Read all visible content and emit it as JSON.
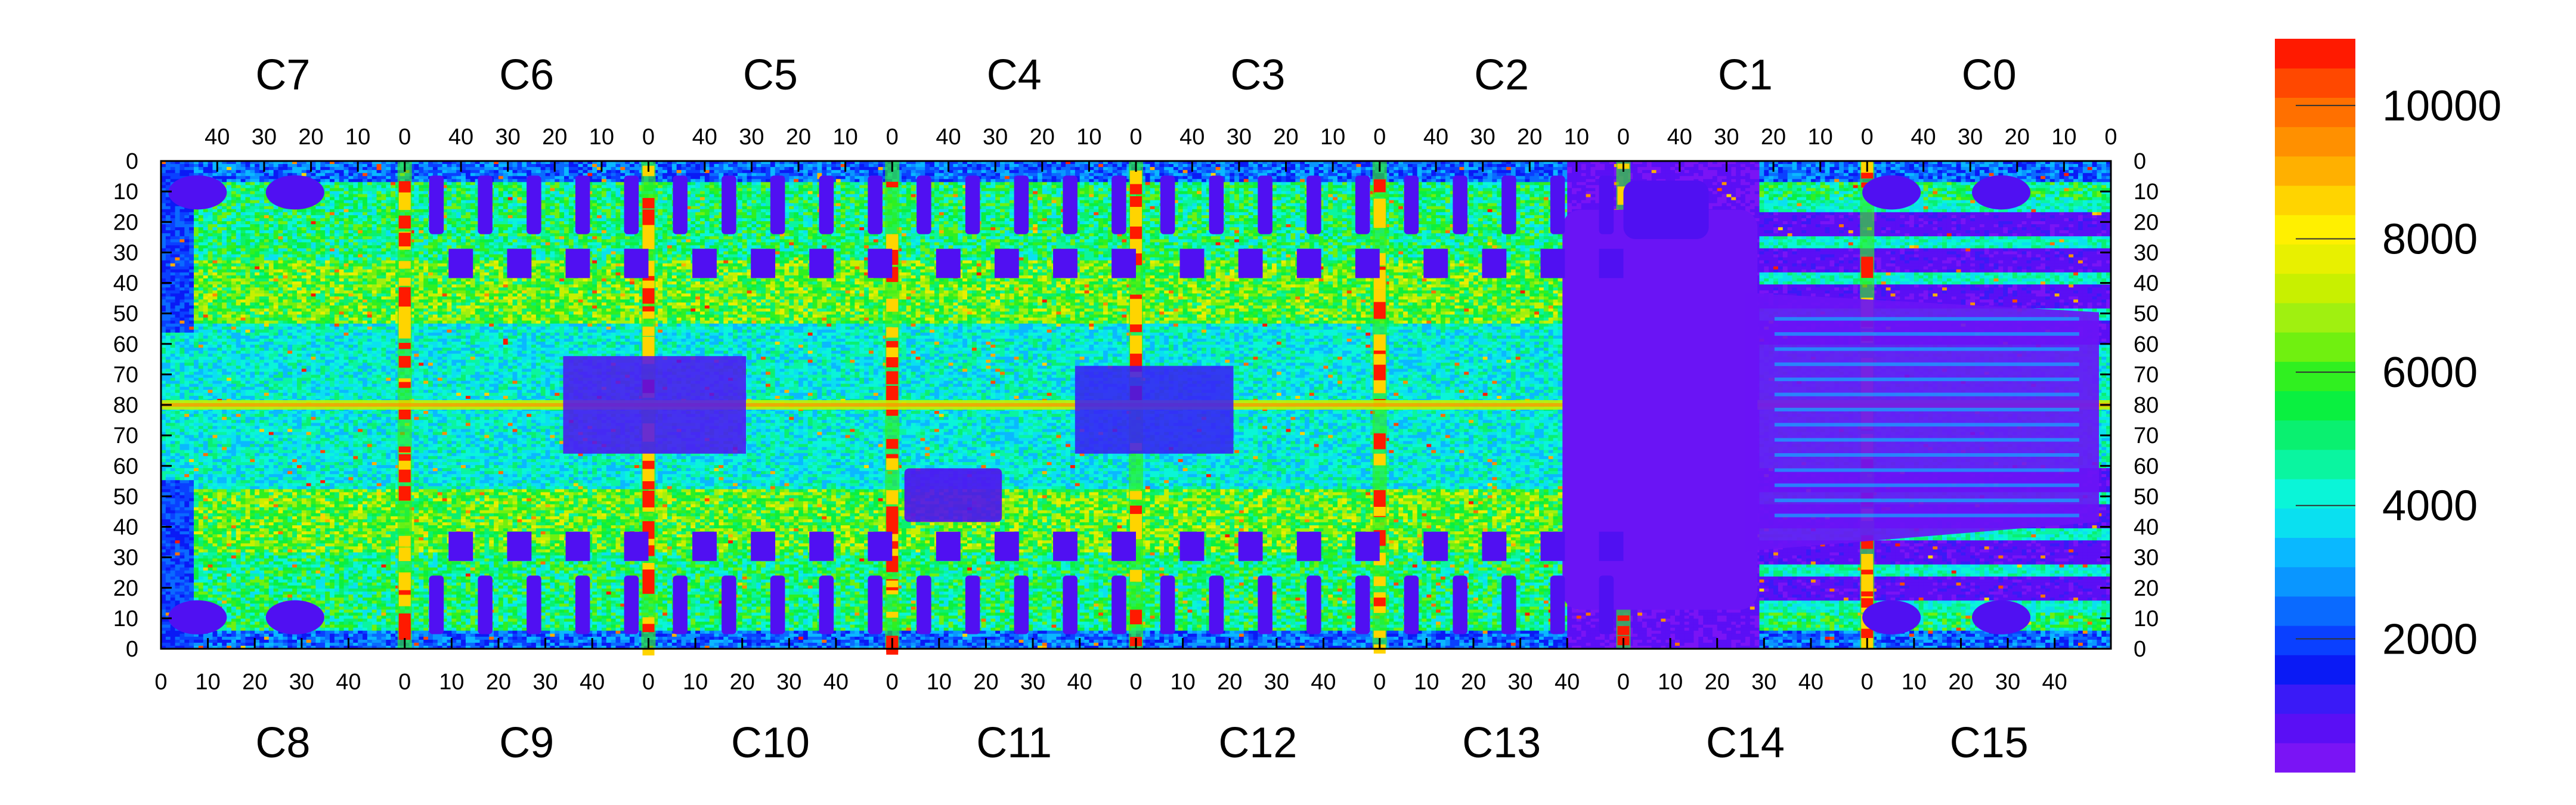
{
  "chart_data": {
    "type": "heatmap",
    "title": "",
    "xlabel": "",
    "ylabel": "",
    "top_chips": [
      "C7",
      "C6",
      "C5",
      "C4",
      "C3",
      "C2",
      "C1",
      "C0"
    ],
    "bottom_chips": [
      "C8",
      "C9",
      "C10",
      "C11",
      "C12",
      "C13",
      "C14",
      "C15"
    ],
    "top_x_ticks": [
      "40",
      "30",
      "20",
      "10",
      "0"
    ],
    "bottom_x_ticks": [
      "0",
      "10",
      "20",
      "30",
      "40"
    ],
    "y_ticks_top_half": [
      "0",
      "10",
      "20",
      "30",
      "40",
      "50",
      "60",
      "70",
      "80"
    ],
    "y_ticks_bottom_half": [
      "70",
      "60",
      "50",
      "40",
      "30",
      "20",
      "10",
      "0"
    ],
    "colorbar": {
      "ticks": [
        2000,
        4000,
        6000,
        8000,
        10000
      ],
      "tick_labels": [
        "2000",
        "4000",
        "6000",
        "8000",
        "10000"
      ],
      "zlim": [
        0,
        11000
      ],
      "palette": [
        "#7a14f5",
        "#5a0ff5",
        "#3a1af7",
        "#0a1af5",
        "#0a40ff",
        "#0a6aff",
        "#0a96ff",
        "#0ab8ff",
        "#0ae0f0",
        "#0af5d8",
        "#0af5a0",
        "#0af070",
        "#0af040",
        "#30f020",
        "#70f010",
        "#a0f010",
        "#c8f000",
        "#e8f000",
        "#fff000",
        "#ffd400",
        "#ffb000",
        "#ff9000",
        "#ff7000",
        "#ff4800",
        "#ff1a00"
      ]
    },
    "grid": false,
    "legend": "right"
  }
}
